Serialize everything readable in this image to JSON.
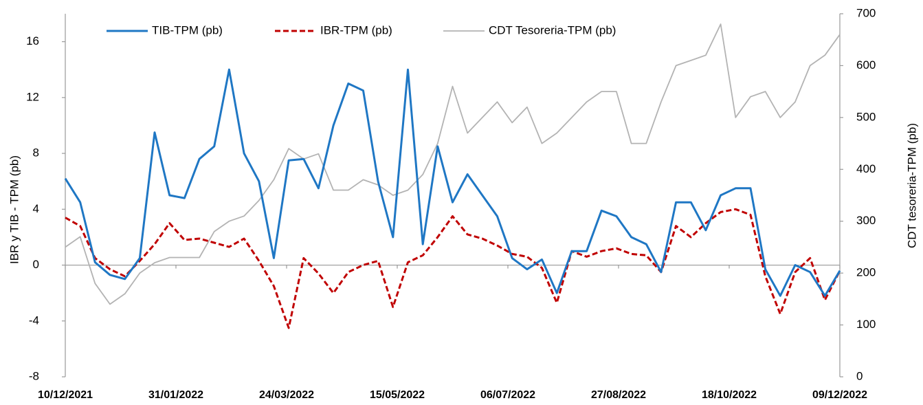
{
  "chart_data": {
    "type": "line",
    "y_label": "IBR y TIB - TPM (pb)",
    "y2_label": "CDT tesoreria-TPM (pb)",
    "x": [
      "10/12/2021",
      "17/12/2021",
      "24/12/2021",
      "31/12/2021",
      "07/01/2022",
      "14/01/2022",
      "21/01/2022",
      "28/01/2022",
      "04/02/2022",
      "11/02/2022",
      "18/02/2022",
      "25/02/2022",
      "04/03/2022",
      "11/03/2022",
      "18/03/2022",
      "25/03/2022",
      "01/04/2022",
      "08/04/2022",
      "15/04/2022",
      "22/04/2022",
      "29/04/2022",
      "06/05/2022",
      "13/05/2022",
      "20/05/2022",
      "27/05/2022",
      "03/06/2022",
      "10/06/2022",
      "17/06/2022",
      "24/06/2022",
      "01/07/2022",
      "08/07/2022",
      "15/07/2022",
      "22/07/2022",
      "29/07/2022",
      "05/08/2022",
      "12/08/2022",
      "19/08/2022",
      "26/08/2022",
      "02/09/2022",
      "09/09/2022",
      "16/09/2022",
      "23/09/2022",
      "30/09/2022",
      "07/10/2022",
      "14/10/2022",
      "21/10/2022",
      "28/10/2022",
      "04/11/2022",
      "11/11/2022",
      "18/11/2022",
      "25/11/2022",
      "02/12/2022",
      "09/12/2022"
    ],
    "series": [
      {
        "name": "TIB-TPM (pb)",
        "color": "#1f77c4",
        "dash": "solid",
        "values": [
          6.2,
          4.5,
          0.2,
          -0.7,
          -1.0,
          0.5,
          9.5,
          5.0,
          4.8,
          7.6,
          8.5,
          14.0,
          8,
          6,
          0.5,
          7.5,
          7.6,
          5.5,
          10,
          13,
          12.5,
          6,
          2,
          14,
          1.5,
          8.5,
          4.5,
          6.5,
          5,
          3.5,
          0.5,
          -0.3,
          0.4,
          -2.0,
          1.0,
          1.0,
          3.9,
          3.5,
          2,
          1.5,
          -0.5,
          4.5,
          4.5,
          2.5,
          5,
          5.5,
          5.5,
          -0.3,
          -2.2,
          0.0,
          -0.5,
          -2.2,
          -0.4
        ]
      },
      {
        "name": "IBR-TPM (pb)",
        "color": "#c00000",
        "dash": "dashed",
        "values": [
          3.4,
          2.8,
          0.5,
          -0.3,
          -0.8,
          0.3,
          1.5,
          3.0,
          1.8,
          1.9,
          1.6,
          1.3,
          1.9,
          0.3,
          -1.5,
          -4.5,
          0.5,
          -0.6,
          -2,
          -0.5,
          0,
          0.3,
          -3.0,
          0.2,
          0.7,
          2.0,
          3.5,
          2.2,
          1.9,
          1.4,
          0.8,
          0.6,
          -0.2,
          -2.7,
          1.0,
          0.6,
          1.0,
          1.2,
          0.8,
          0.7,
          -0.5,
          2.8,
          2.0,
          3.0,
          3.8,
          4.0,
          3.6,
          -0.8,
          -3.5,
          -0.5,
          0.5,
          -2.5,
          -0.4
        ]
      },
      {
        "name": "CDT Tesoreria-TPM (pb)",
        "color": "#b3b3b3",
        "dash": "solid",
        "axis": "y2",
        "values": [
          250,
          270,
          180,
          140,
          160,
          200,
          220,
          230,
          230,
          230,
          280,
          300,
          310,
          340,
          380,
          440,
          420,
          430,
          360,
          360,
          380,
          370,
          350,
          360,
          390,
          450,
          560,
          470,
          500,
          530,
          490,
          520,
          450,
          470,
          500,
          530,
          550,
          550,
          450,
          450,
          530,
          600,
          610,
          620,
          680,
          500,
          540,
          550,
          500,
          530,
          600,
          620,
          660
        ]
      }
    ],
    "xticks": [
      "10/12/2021",
      "31/01/2022",
      "24/03/2022",
      "15/05/2022",
      "06/07/2022",
      "27/08/2022",
      "18/10/2022",
      "09/12/2022"
    ],
    "xlim": [
      "10/12/2021",
      "09/12/2022"
    ],
    "ylim": [
      -8,
      18
    ],
    "yticks": [
      -8,
      -4,
      0,
      4,
      8,
      12,
      16
    ],
    "y2lim": [
      0,
      700
    ],
    "y2ticks": [
      0,
      100,
      200,
      300,
      400,
      500,
      600,
      700
    ],
    "legend": "top"
  }
}
